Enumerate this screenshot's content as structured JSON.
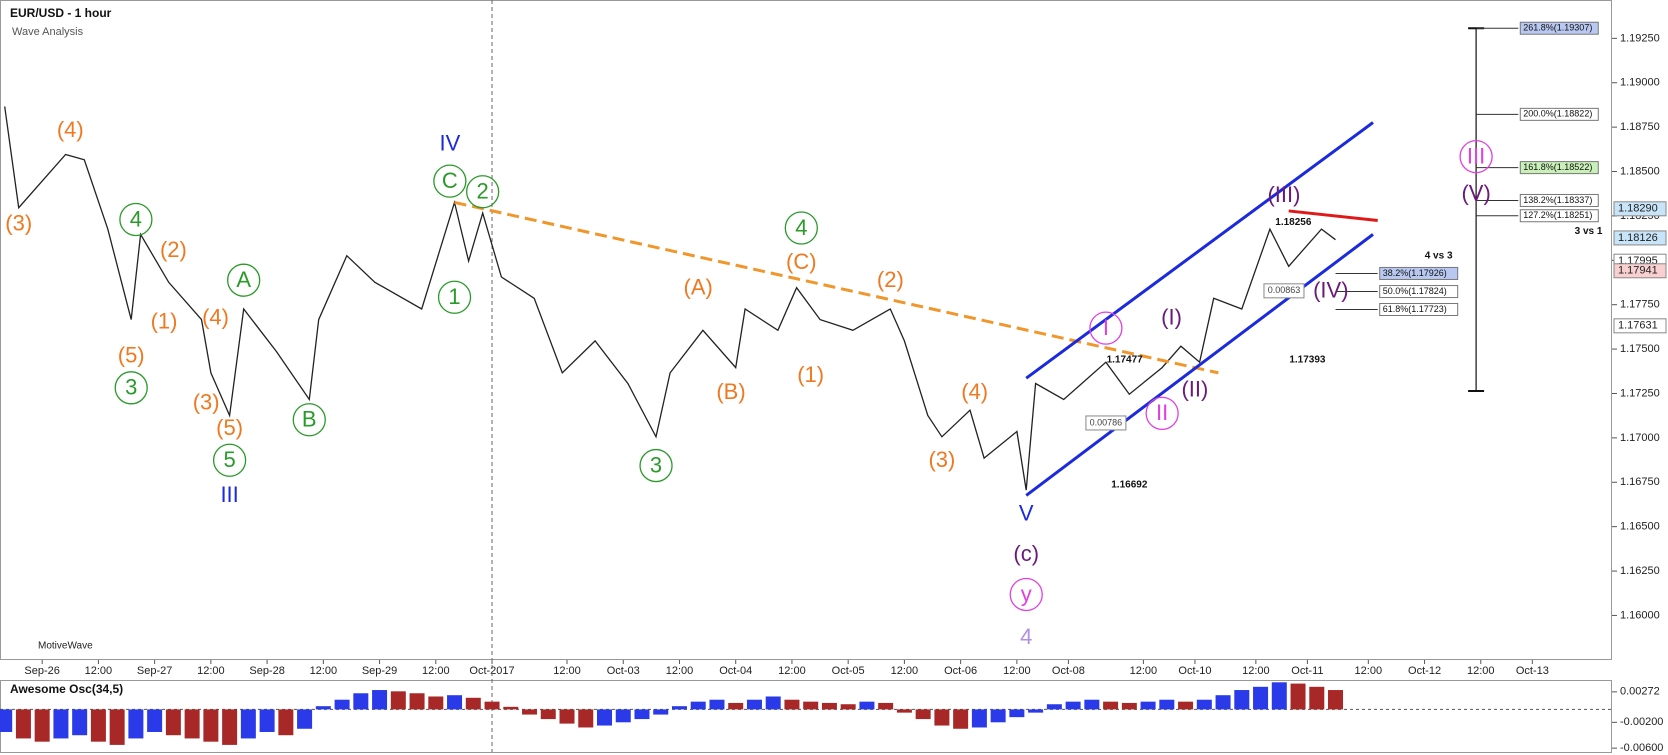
{
  "chart_data": {
    "type": "line",
    "title": "EUR/USD - 1 hour",
    "subtitle": "Wave Analysis",
    "watermark": "MotiveWave",
    "xlim": [
      -9,
      335
    ],
    "ylim": [
      1.15749,
      1.19466
    ],
    "xticks": [
      {
        "value": 0,
        "label": "Sep-26"
      },
      {
        "value": 12,
        "label": "12:00"
      },
      {
        "value": 24,
        "label": "Sep-27"
      },
      {
        "value": 36,
        "label": "12:00"
      },
      {
        "value": 48,
        "label": "Sep-28"
      },
      {
        "value": 60,
        "label": "12:00"
      },
      {
        "value": 72,
        "label": "Sep-29"
      },
      {
        "value": 84,
        "label": "12:00"
      },
      {
        "value": 96,
        "label": "Oct-2017"
      },
      {
        "value": 112,
        "label": "12:00"
      },
      {
        "value": 124,
        "label": "Oct-03"
      },
      {
        "value": 136,
        "label": "12:00"
      },
      {
        "value": 148,
        "label": "Oct-04"
      },
      {
        "value": 160,
        "label": "12:00"
      },
      {
        "value": 172,
        "label": "Oct-05"
      },
      {
        "value": 184,
        "label": "12:00"
      },
      {
        "value": 196,
        "label": "Oct-06"
      },
      {
        "value": 208,
        "label": "12:00"
      },
      {
        "value": 219,
        "label": "Oct-08"
      },
      {
        "value": 235,
        "label": "12:00"
      },
      {
        "value": 246,
        "label": "Oct-10"
      },
      {
        "value": 259,
        "label": "12:00"
      },
      {
        "value": 270,
        "label": "Oct-11"
      },
      {
        "value": 283,
        "label": "12:00"
      },
      {
        "value": 295,
        "label": "Oct-12"
      },
      {
        "value": 307,
        "label": "12:00"
      },
      {
        "value": 318,
        "label": "Oct-13"
      }
    ],
    "yticks": [
      {
        "value": 1.16,
        "label": "1.16000"
      },
      {
        "value": 1.1625,
        "label": "1.16250"
      },
      {
        "value": 1.165,
        "label": "1.16500"
      },
      {
        "value": 1.1675,
        "label": "1.16750"
      },
      {
        "value": 1.17,
        "label": "1.17000"
      },
      {
        "value": 1.1725,
        "label": "1.17250"
      },
      {
        "value": 1.175,
        "label": "1.17500"
      },
      {
        "value": 1.1775,
        "label": "1.17750"
      },
      {
        "value": 1.18,
        "label": "1.18000"
      },
      {
        "value": 1.1825,
        "label": "1.18250"
      },
      {
        "value": 1.185,
        "label": "1.18500"
      },
      {
        "value": 1.1875,
        "label": "1.18750"
      },
      {
        "value": 1.19,
        "label": "1.19000"
      },
      {
        "value": 1.1925,
        "label": "1.19250"
      }
    ],
    "series": [
      {
        "color": "#222222",
        "x": [
          -8,
          -5,
          5,
          9,
          14,
          19,
          21,
          27,
          34,
          36,
          40,
          43,
          50,
          57,
          59,
          65,
          71,
          81,
          88,
          91,
          94,
          98,
          105,
          111,
          118,
          125,
          131,
          134,
          141,
          148,
          150,
          157,
          161,
          166,
          173,
          181,
          184,
          189,
          192,
          198,
          201,
          208,
          210,
          212,
          218,
          227,
          232,
          239,
          243,
          247,
          250,
          256,
          262,
          266,
          273,
          276
        ],
        "values": [
          1.18866,
          1.18296,
          1.18596,
          1.18566,
          1.18176,
          1.17666,
          1.18146,
          1.17876,
          1.17666,
          1.17366,
          1.17126,
          1.17726,
          1.17486,
          1.17216,
          1.17666,
          1.18026,
          1.17876,
          1.17726,
          1.18326,
          1.17996,
          1.18266,
          1.17906,
          1.17786,
          1.17366,
          1.17546,
          1.17306,
          1.17006,
          1.17366,
          1.17606,
          1.17396,
          1.17726,
          1.17606,
          1.17846,
          1.17666,
          1.17606,
          1.17726,
          1.17546,
          1.17126,
          1.17006,
          1.17156,
          1.16886,
          1.17036,
          1.16706,
          1.17306,
          1.17216,
          1.17426,
          1.17246,
          1.17396,
          1.17516,
          1.17426,
          1.17786,
          1.17726,
          1.18176,
          1.17966,
          1.18176,
          1.18116
        ]
      }
    ],
    "trendlines": [
      {
        "x": [
          88,
          251
        ],
        "y": [
          1.18326,
          1.17366
        ],
        "color": "#f0962a",
        "dashed": true
      },
      {
        "x": [
          210,
          284
        ],
        "y": [
          1.17336,
          1.18776
        ],
        "color": "#1a2adc",
        "dashed": false
      },
      {
        "x": [
          210,
          284
        ],
        "y": [
          1.16676,
          1.18146
        ],
        "color": "#1a2adc",
        "dashed": false
      },
      {
        "x": [
          266,
          285
        ],
        "y": [
          1.18278,
          1.18224
        ],
        "color": "#e01818",
        "dashed": false
      }
    ],
    "fib_extension": {
      "x": [
        306,
        315
      ],
      "base": 1.17264,
      "levels": [
        {
          "value": 1.19307,
          "label": "261.8%(1.19307)",
          "color": "#b8c8f0"
        },
        {
          "value": 1.18822,
          "label": "200.0%(1.18822)",
          "color": "#ffffff"
        },
        {
          "value": 1.18522,
          "label": "161.8%(1.18522)",
          "color": "#c8f0b8"
        },
        {
          "value": 1.18337,
          "label": "138.2%(1.18337)",
          "color": "#ffffff"
        },
        {
          "value": 1.18251,
          "label": "127.2%(1.18251)",
          "color": "#ffffff"
        }
      ]
    },
    "fib_retracement": {
      "x": [
        276,
        285
      ],
      "levels": [
        {
          "value": 1.17926,
          "label": "38.2%(1.17926)",
          "color": "#b8c8f0"
        },
        {
          "value": 1.17824,
          "label": "50.0%(1.17824)",
          "color": "#ffffff"
        },
        {
          "value": 1.17723,
          "label": "61.8%(1.17723)",
          "color": "#ffffff"
        }
      ]
    },
    "price_tags": [
      {
        "value": 1.1829,
        "label": "1.18290",
        "color": "#c8e4f8"
      },
      {
        "value": 1.18126,
        "label": "1.18126",
        "color": "#c8e4f8"
      },
      {
        "value": 1.17995,
        "label": "1.17995",
        "color": "#ffffff"
      },
      {
        "value": 1.17941,
        "label": "1.17941",
        "color": "#f8d0d0"
      },
      {
        "value": 1.17631,
        "label": "1.17631",
        "color": "#ffffff"
      }
    ],
    "wave_labels": [
      {
        "text": "(3)",
        "x": -5,
        "y": 1.18206,
        "color": "#f07820",
        "circled": false
      },
      {
        "text": "(4)",
        "x": 6,
        "y": 1.18734,
        "color": "#f07820",
        "circled": false
      },
      {
        "text": "4",
        "x": 20,
        "y": 1.1823,
        "color": "#2a9a2a",
        "circled": true
      },
      {
        "text": "(2)",
        "x": 28,
        "y": 1.18056,
        "color": "#f07820",
        "circled": false
      },
      {
        "text": "(1)",
        "x": 26,
        "y": 1.17654,
        "color": "#f07820",
        "circled": false
      },
      {
        "text": "(5)",
        "x": 19,
        "y": 1.17462,
        "color": "#f07820",
        "circled": false
      },
      {
        "text": "3",
        "x": 19,
        "y": 1.17282,
        "color": "#2a9a2a",
        "circled": true
      },
      {
        "text": "(4)",
        "x": 37,
        "y": 1.17678,
        "color": "#f07820",
        "circled": false
      },
      {
        "text": "(3)",
        "x": 35,
        "y": 1.17198,
        "color": "#f07820",
        "circled": false
      },
      {
        "text": "(5)",
        "x": 40,
        "y": 1.17054,
        "color": "#f07820",
        "circled": false
      },
      {
        "text": "5",
        "x": 40,
        "y": 1.16874,
        "color": "#2a9a2a",
        "circled": true
      },
      {
        "text": "III",
        "x": 40,
        "y": 1.16676,
        "color": "#1a2adc",
        "circled": false
      },
      {
        "text": "A",
        "x": 43,
        "y": 1.17888,
        "color": "#2a9a2a",
        "circled": true
      },
      {
        "text": "B",
        "x": 57,
        "y": 1.17102,
        "color": "#2a9a2a",
        "circled": true
      },
      {
        "text": "IV",
        "x": 87,
        "y": 1.18656,
        "color": "#1a2adc",
        "circled": false
      },
      {
        "text": "C",
        "x": 87,
        "y": 1.18446,
        "color": "#2a9a2a",
        "circled": true
      },
      {
        "text": "2",
        "x": 94,
        "y": 1.18386,
        "color": "#2a9a2a",
        "circled": true
      },
      {
        "text": "1",
        "x": 88,
        "y": 1.17792,
        "color": "#2a9a2a",
        "circled": true
      },
      {
        "text": "(A)",
        "x": 140,
        "y": 1.17846,
        "color": "#f07820",
        "circled": false
      },
      {
        "text": "(B)",
        "x": 147,
        "y": 1.17258,
        "color": "#f07820",
        "circled": false
      },
      {
        "text": "3",
        "x": 131,
        "y": 1.16844,
        "color": "#2a9a2a",
        "circled": true
      },
      {
        "text": "4",
        "x": 162,
        "y": 1.18182,
        "color": "#2a9a2a",
        "circled": true
      },
      {
        "text": "(C)",
        "x": 162,
        "y": 1.1799,
        "color": "#f07820",
        "circled": false
      },
      {
        "text": "(1)",
        "x": 164,
        "y": 1.17354,
        "color": "#f07820",
        "circled": false
      },
      {
        "text": "(2)",
        "x": 181,
        "y": 1.17888,
        "color": "#f07820",
        "circled": false
      },
      {
        "text": "(4)",
        "x": 199,
        "y": 1.17258,
        "color": "#f07820",
        "circled": false
      },
      {
        "text": "(3)",
        "x": 192,
        "y": 1.16874,
        "color": "#f07820",
        "circled": false
      },
      {
        "text": "V",
        "x": 210,
        "y": 1.16574,
        "color": "#1a2adc",
        "circled": false
      },
      {
        "text": "(c)",
        "x": 210,
        "y": 1.16346,
        "color": "#6a1a7a",
        "circled": false
      },
      {
        "text": "y",
        "x": 210,
        "y": 1.16118,
        "color": "#e040e0",
        "circled": true
      },
      {
        "text": "4",
        "x": 210,
        "y": 1.15878,
        "color": "#b090e0",
        "circled": false
      },
      {
        "text": "I",
        "x": 227,
        "y": 1.17618,
        "color": "#e040e0",
        "circled": true
      },
      {
        "text": "II",
        "x": 239,
        "y": 1.17138,
        "color": "#e040e0",
        "circled": true
      },
      {
        "text": "(I)",
        "x": 241,
        "y": 1.17678,
        "color": "#6a1a7a",
        "circled": false
      },
      {
        "text": "(II)",
        "x": 246,
        "y": 1.1727,
        "color": "#6a1a7a",
        "circled": false
      },
      {
        "text": "(III)",
        "x": 265,
        "y": 1.18368,
        "color": "#6a1a7a",
        "circled": false
      },
      {
        "text": "(IV)",
        "x": 275,
        "y": 1.17828,
        "color": "#6a1a7a",
        "circled": false
      },
      {
        "text": "III",
        "x": 306,
        "y": 1.18584,
        "color": "#e040e0",
        "circled": true
      },
      {
        "text": "(V)",
        "x": 306,
        "y": 1.18374,
        "color": "#6a1a7a",
        "circled": false
      }
    ],
    "notes": [
      {
        "text": "4 vs 3",
        "x": 298,
        "y": 1.18026,
        "boxed": false
      },
      {
        "text": "3 vs 1",
        "x": 330,
        "y": 1.18164,
        "boxed": false
      },
      {
        "text": "1.18256",
        "x": 267,
        "y": 1.18214,
        "boxed": false
      },
      {
        "text": "0.00863",
        "x": 265,
        "y": 1.17828,
        "boxed": true
      },
      {
        "text": "1.17393",
        "x": 270,
        "y": 1.17438,
        "boxed": false
      },
      {
        "text": "0.00786",
        "x": 227,
        "y": 1.17084,
        "boxed": true
      },
      {
        "text": "1.16692",
        "x": 232,
        "y": 1.16736,
        "boxed": false
      },
      {
        "text": "1.17477",
        "x": 231,
        "y": 1.17438,
        "boxed": false
      }
    ],
    "oscillator": {
      "title": "Awesome Osc(34,5)",
      "up_color": "#2a3ae8",
      "down_color": "#a82828",
      "ylim": [
        -0.0066,
        0.0044
      ],
      "yticks": [
        {
          "value": 0.00272,
          "label": "0.00272"
        },
        {
          "value": -0.002,
          "label": "-0.00200"
        },
        {
          "value": -0.006,
          "label": "-0.00600"
        }
      ],
      "x": [
        -8,
        -4,
        0,
        4,
        8,
        12,
        16,
        20,
        24,
        28,
        32,
        36,
        40,
        44,
        48,
        52,
        56,
        60,
        64,
        68,
        72,
        76,
        80,
        84,
        88,
        92,
        96,
        100,
        104,
        108,
        112,
        116,
        120,
        124,
        128,
        132,
        136,
        140,
        144,
        148,
        152,
        156,
        160,
        164,
        168,
        172,
        176,
        180,
        184,
        188,
        192,
        196,
        200,
        204,
        208,
        212,
        216,
        220,
        224,
        228,
        232,
        236,
        240,
        244,
        248,
        252,
        256,
        260,
        264,
        268,
        272,
        276
      ],
      "values": [
        -0.0035,
        -0.0045,
        -0.005,
        -0.0045,
        -0.004,
        -0.005,
        -0.0055,
        -0.0045,
        -0.0035,
        -0.004,
        -0.0045,
        -0.005,
        -0.0055,
        -0.0045,
        -0.0035,
        -0.004,
        -0.003,
        0.0005,
        0.0015,
        0.0025,
        0.003,
        0.0028,
        0.0025,
        0.002,
        0.0022,
        0.0018,
        0.0012,
        0.0004,
        -0.0008,
        -0.0015,
        -0.0022,
        -0.0028,
        -0.0025,
        -0.002,
        -0.0015,
        -0.0008,
        0.0005,
        0.0012,
        0.0015,
        0.001,
        0.0015,
        0.002,
        0.0015,
        0.0012,
        0.001,
        0.0008,
        0.0012,
        0.001,
        -0.0005,
        -0.0015,
        -0.0025,
        -0.003,
        -0.0028,
        -0.002,
        -0.0012,
        -0.0005,
        0.0008,
        0.0012,
        0.0015,
        0.0012,
        0.001,
        0.0012,
        0.0015,
        0.0012,
        0.0015,
        0.0022,
        0.003,
        0.0035,
        0.0042,
        0.004,
        0.0035,
        0.003
      ]
    }
  }
}
